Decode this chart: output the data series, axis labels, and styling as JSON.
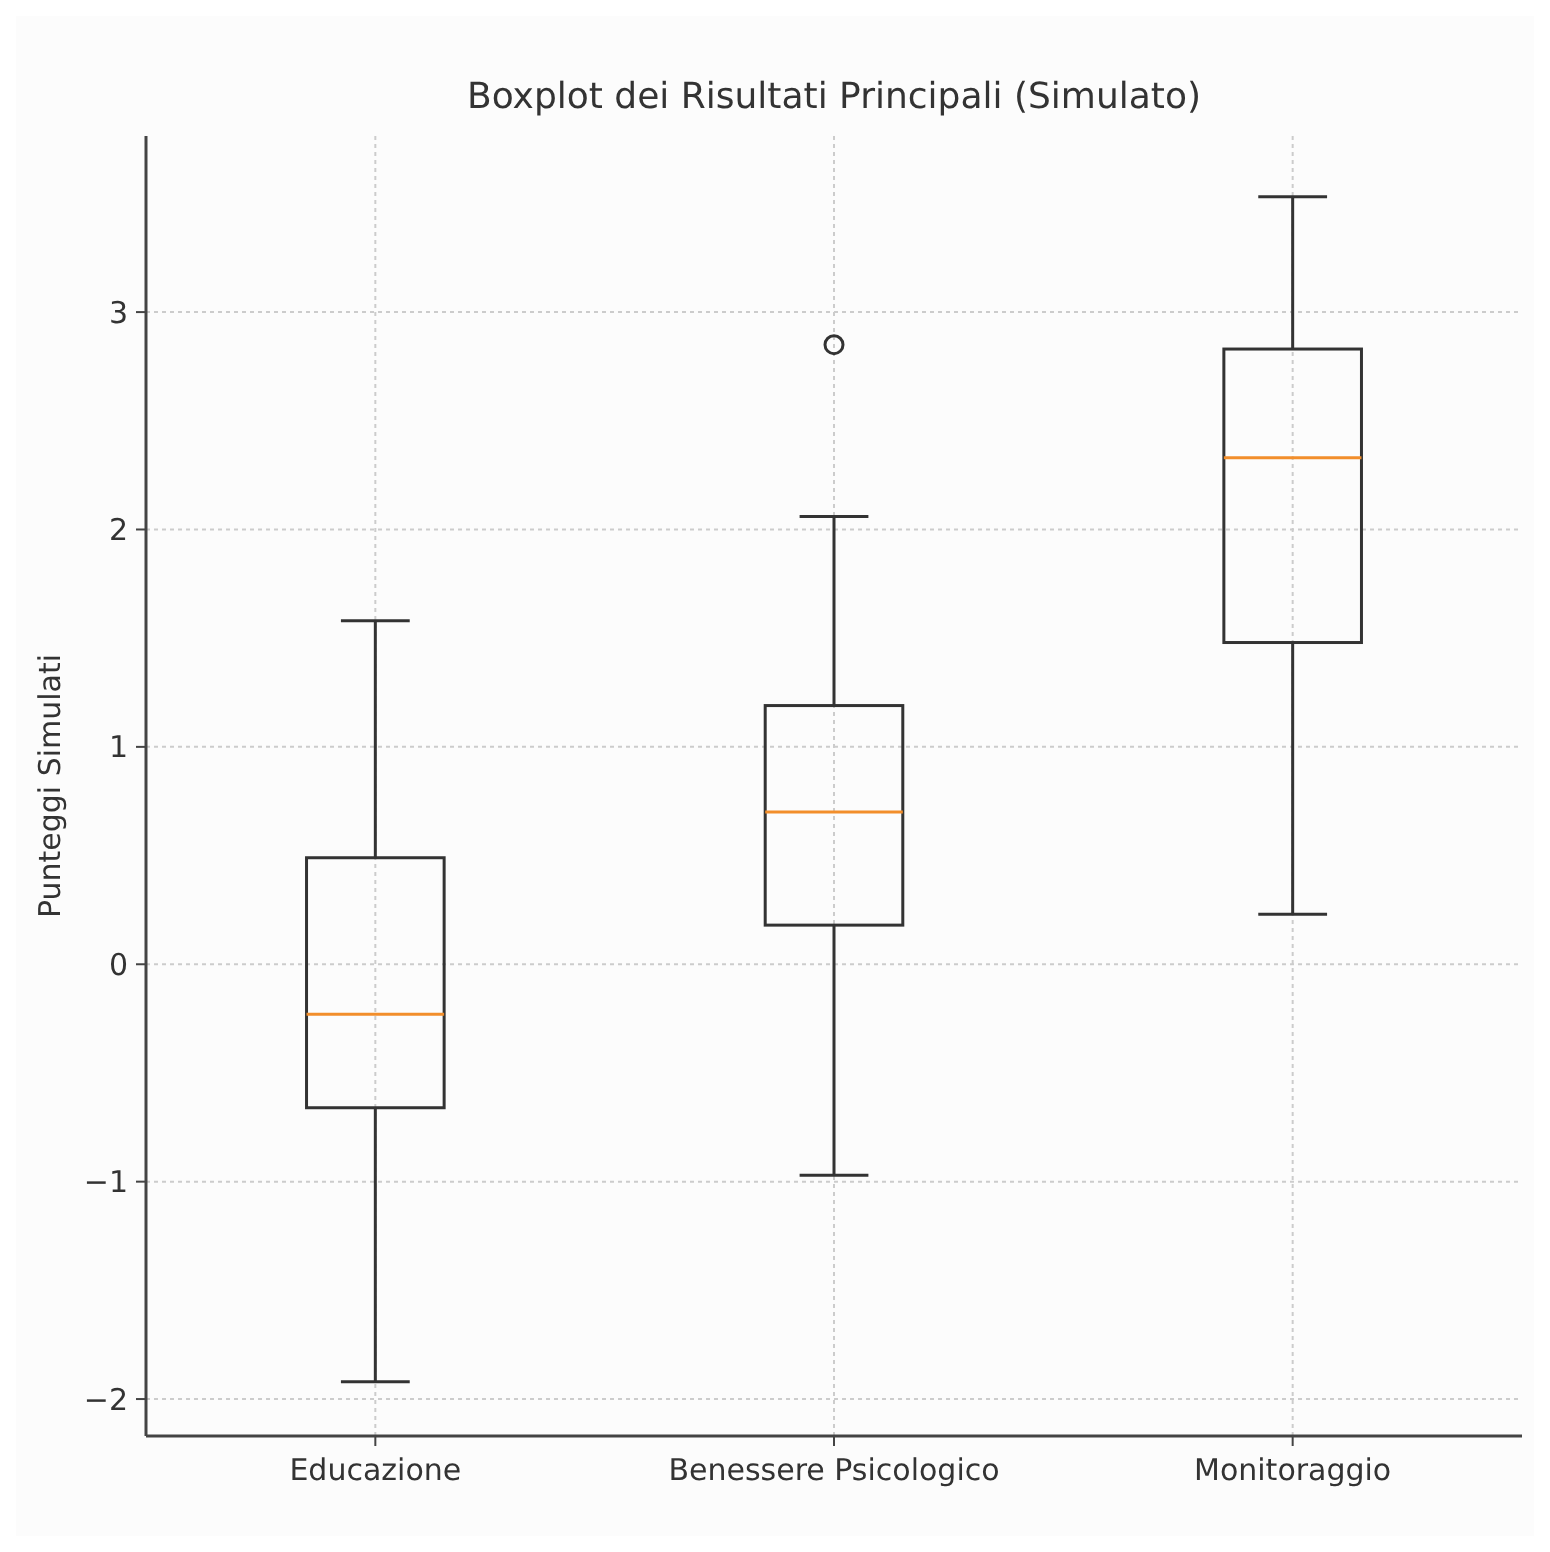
{
  "chart_data": {
    "type": "box",
    "title": "Boxplot dei Risultati Principali (Simulato)",
    "ylabel": "Punteggi Simulati",
    "categories": [
      "Educazione",
      "Benessere Psicologico",
      "Monitoraggio"
    ],
    "boxes": [
      {
        "low": -1.92,
        "q1": -0.66,
        "median": -0.23,
        "q3": 0.49,
        "high": 1.58
      },
      {
        "low": -0.97,
        "q1": 0.18,
        "median": 0.7,
        "q3": 1.19,
        "high": 2.06,
        "outliers": [
          2.85
        ]
      },
      {
        "low": 0.23,
        "q1": 1.48,
        "median": 2.33,
        "q3": 2.83,
        "high": 3.53
      }
    ],
    "color": "#333333",
    "ylim": [
      -2.17,
      3.81
    ],
    "yticks": [
      {
        "value": -2,
        "label": "−2"
      },
      {
        "value": -1,
        "label": "−1"
      },
      0,
      1,
      2,
      3
    ],
    "grid": true
  }
}
